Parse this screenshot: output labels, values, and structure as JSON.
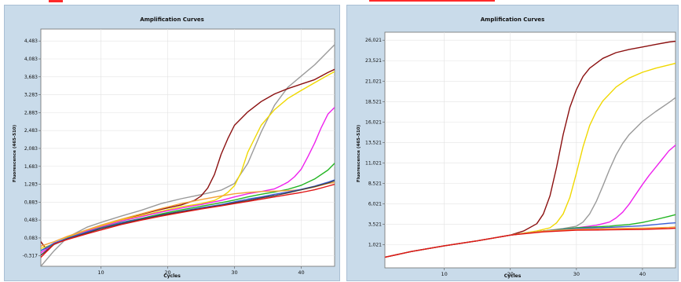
{
  "chart_data": [
    {
      "type": "line",
      "title": "Amplification Curves",
      "xlabel": "Cycles",
      "ylabel": "Fluorescence (465-510)",
      "xlim": [
        1,
        45
      ],
      "ylim": [
        -0.55,
        4.75
      ],
      "x_ticks": [
        "10",
        "20",
        "30",
        "40"
      ],
      "y_ticks": [
        "4,483",
        "4,083",
        "3,683",
        "3,283",
        "2,883",
        "2,483",
        "2,083",
        "1,683",
        "1,283",
        "0,883",
        "0,483",
        "0,083",
        "-0,317"
      ],
      "y_tick_values": [
        4.483,
        4.083,
        3.683,
        3.283,
        2.883,
        2.483,
        2.083,
        1.683,
        1.283,
        0.883,
        0.483,
        0.083,
        -0.317
      ],
      "grid": true,
      "series": [
        {
          "color": "#9a9a9a",
          "x": [
            1,
            3,
            5,
            8,
            10,
            13,
            16,
            19,
            22,
            25,
            28,
            30,
            32,
            34,
            36,
            38,
            40,
            42,
            44,
            45
          ],
          "y": [
            -0.55,
            -0.2,
            0.1,
            0.33,
            0.43,
            0.57,
            0.7,
            0.85,
            0.96,
            1.05,
            1.15,
            1.3,
            1.75,
            2.45,
            3.05,
            3.45,
            3.7,
            3.95,
            4.25,
            4.4
          ]
        },
        {
          "color": "#8b1010",
          "x": [
            1,
            2,
            3,
            5,
            8,
            10,
            13,
            16,
            19,
            22,
            24,
            25,
            26,
            27,
            28,
            29,
            30,
            32,
            34,
            36,
            38,
            40,
            42,
            44,
            45
          ],
          "y": [
            0.0,
            -0.2,
            -0.05,
            0.08,
            0.24,
            0.33,
            0.48,
            0.61,
            0.72,
            0.82,
            0.92,
            1.02,
            1.2,
            1.5,
            1.95,
            2.3,
            2.6,
            2.9,
            3.13,
            3.3,
            3.42,
            3.52,
            3.62,
            3.78,
            3.85
          ]
        },
        {
          "color": "#f0d800",
          "x": [
            1,
            3,
            5,
            8,
            10,
            13,
            16,
            19,
            22,
            25,
            27,
            28,
            29,
            30,
            31,
            32,
            34,
            36,
            38,
            40,
            42,
            44,
            45
          ],
          "y": [
            -0.15,
            -0.05,
            0.1,
            0.25,
            0.35,
            0.48,
            0.58,
            0.68,
            0.78,
            0.85,
            0.92,
            1.0,
            1.1,
            1.25,
            1.55,
            2.0,
            2.6,
            2.95,
            3.2,
            3.38,
            3.55,
            3.72,
            3.8
          ]
        },
        {
          "color": "#ee22ee",
          "x": [
            1,
            3,
            5,
            8,
            10,
            13,
            16,
            19,
            22,
            25,
            28,
            30,
            32,
            34,
            36,
            37,
            38,
            39,
            40,
            41,
            42,
            43,
            44,
            45
          ],
          "y": [
            -0.25,
            -0.05,
            0.08,
            0.24,
            0.33,
            0.46,
            0.56,
            0.66,
            0.75,
            0.83,
            0.92,
            1.0,
            1.07,
            1.12,
            1.18,
            1.25,
            1.33,
            1.45,
            1.62,
            1.9,
            2.2,
            2.55,
            2.85,
            3.0
          ]
        },
        {
          "color": "#22b522",
          "x": [
            1,
            3,
            5,
            8,
            10,
            13,
            16,
            19,
            22,
            25,
            28,
            30,
            32,
            34,
            36,
            38,
            40,
            42,
            44,
            45
          ],
          "y": [
            -0.2,
            -0.05,
            0.08,
            0.22,
            0.31,
            0.43,
            0.52,
            0.62,
            0.71,
            0.79,
            0.87,
            0.93,
            1.0,
            1.06,
            1.11,
            1.17,
            1.26,
            1.4,
            1.6,
            1.75
          ]
        },
        {
          "color": "#f4a23a",
          "x": [
            1,
            3,
            5,
            8,
            10,
            13,
            16,
            19,
            22,
            25,
            28,
            30,
            32,
            34,
            36,
            38,
            40,
            42,
            44,
            45
          ],
          "y": [
            -0.1,
            0.0,
            0.12,
            0.27,
            0.37,
            0.5,
            0.62,
            0.74,
            0.85,
            0.94,
            1.02,
            1.07,
            1.1,
            1.12,
            1.13,
            1.14,
            1.16,
            1.22,
            1.3,
            1.32
          ]
        },
        {
          "color": "#3b5fd9",
          "x": [
            1,
            3,
            5,
            8,
            10,
            13,
            16,
            19,
            22,
            25,
            28,
            30,
            32,
            34,
            36,
            38,
            40,
            42,
            44,
            45
          ],
          "y": [
            -0.2,
            -0.03,
            0.08,
            0.22,
            0.3,
            0.42,
            0.51,
            0.6,
            0.68,
            0.76,
            0.83,
            0.89,
            0.95,
            1.0,
            1.06,
            1.11,
            1.17,
            1.24,
            1.33,
            1.38
          ]
        },
        {
          "color": "#404040",
          "x": [
            1,
            3,
            5,
            8,
            10,
            13,
            16,
            19,
            22,
            25,
            28,
            30,
            32,
            34,
            36,
            38,
            40,
            42,
            44,
            45
          ],
          "y": [
            -0.3,
            -0.06,
            0.06,
            0.2,
            0.29,
            0.4,
            0.5,
            0.59,
            0.67,
            0.74,
            0.81,
            0.87,
            0.92,
            0.98,
            1.03,
            1.09,
            1.16,
            1.23,
            1.31,
            1.36
          ]
        },
        {
          "color": "#e01515",
          "x": [
            1,
            3,
            5,
            8,
            10,
            13,
            16,
            19,
            22,
            25,
            28,
            30,
            32,
            34,
            36,
            38,
            40,
            42,
            44,
            45
          ],
          "y": [
            -0.35,
            -0.05,
            0.05,
            0.18,
            0.26,
            0.38,
            0.48,
            0.57,
            0.65,
            0.73,
            0.8,
            0.85,
            0.9,
            0.95,
            1.0,
            1.05,
            1.1,
            1.16,
            1.24,
            1.28
          ]
        }
      ]
    },
    {
      "type": "line",
      "title": "Amplification Curves",
      "xlabel": "Cycles",
      "ylabel": "Fluorescence (465-510)",
      "xlim": [
        1,
        45
      ],
      "ylim": [
        -1.8,
        27.0
      ],
      "x_ticks": [
        "10",
        "20",
        "30",
        "40"
      ],
      "y_ticks": [
        "26,021",
        "23,521",
        "21,021",
        "18,521",
        "16,021",
        "13,521",
        "11,021",
        "8,521",
        "6,021",
        "3,521",
        "1,021"
      ],
      "y_tick_values": [
        26.021,
        23.521,
        21.021,
        18.521,
        16.021,
        13.521,
        11.021,
        8.521,
        6.021,
        3.521,
        1.021
      ],
      "grid": true,
      "series": [
        {
          "color": "#8b1010",
          "x": [
            1,
            5,
            10,
            15,
            20,
            22,
            24,
            25,
            26,
            27,
            28,
            29,
            30,
            31,
            32,
            34,
            36,
            38,
            40,
            42,
            44,
            45
          ],
          "y": [
            -0.5,
            0.2,
            0.9,
            1.5,
            2.2,
            2.7,
            3.6,
            4.8,
            7.0,
            10.5,
            14.5,
            17.8,
            20.0,
            21.6,
            22.6,
            23.8,
            24.5,
            24.9,
            25.2,
            25.5,
            25.8,
            25.9
          ]
        },
        {
          "color": "#f0d800",
          "x": [
            1,
            5,
            10,
            15,
            20,
            24,
            26,
            27,
            28,
            29,
            30,
            31,
            32,
            33,
            34,
            36,
            38,
            40,
            42,
            44,
            45
          ],
          "y": [
            -0.5,
            0.2,
            0.9,
            1.5,
            2.2,
            2.7,
            3.1,
            3.7,
            4.8,
            6.8,
            9.8,
            13.0,
            15.6,
            17.3,
            18.6,
            20.3,
            21.4,
            22.1,
            22.6,
            23.0,
            23.2
          ]
        },
        {
          "color": "#9a9a9a",
          "x": [
            1,
            5,
            10,
            15,
            20,
            25,
            28,
            30,
            31,
            32,
            33,
            34,
            35,
            36,
            37,
            38,
            40,
            42,
            44,
            45
          ],
          "y": [
            -0.5,
            0.2,
            0.9,
            1.5,
            2.2,
            2.7,
            3.0,
            3.3,
            3.8,
            4.8,
            6.3,
            8.2,
            10.2,
            12.0,
            13.4,
            14.5,
            16.1,
            17.3,
            18.4,
            19.0
          ]
        },
        {
          "color": "#ee22ee",
          "x": [
            1,
            5,
            10,
            15,
            20,
            25,
            30,
            33,
            35,
            36,
            37,
            38,
            39,
            40,
            41,
            42,
            43,
            44,
            45
          ],
          "y": [
            -0.5,
            0.2,
            0.9,
            1.5,
            2.2,
            2.7,
            3.1,
            3.4,
            3.8,
            4.3,
            5.0,
            6.0,
            7.2,
            8.4,
            9.5,
            10.5,
            11.5,
            12.5,
            13.2
          ]
        },
        {
          "color": "#22b522",
          "x": [
            1,
            5,
            10,
            15,
            20,
            25,
            30,
            35,
            38,
            40,
            42,
            44,
            45
          ],
          "y": [
            -0.5,
            0.2,
            0.9,
            1.5,
            2.2,
            2.7,
            3.1,
            3.3,
            3.5,
            3.75,
            4.1,
            4.5,
            4.7
          ]
        },
        {
          "color": "#3b5fd9",
          "x": [
            1,
            5,
            10,
            15,
            20,
            25,
            30,
            35,
            40,
            42,
            44,
            45
          ],
          "y": [
            -0.5,
            0.2,
            0.9,
            1.5,
            2.2,
            2.7,
            3.0,
            3.15,
            3.35,
            3.5,
            3.65,
            3.7
          ]
        },
        {
          "color": "#f4a23a",
          "x": [
            1,
            5,
            10,
            15,
            20,
            25,
            30,
            35,
            40,
            42,
            44,
            45
          ],
          "y": [
            -0.5,
            0.2,
            0.9,
            1.5,
            2.2,
            2.7,
            2.9,
            3.0,
            3.05,
            3.1,
            3.15,
            3.2
          ]
        },
        {
          "color": "#e01515",
          "x": [
            1,
            5,
            10,
            15,
            20,
            25,
            30,
            35,
            40,
            42,
            44,
            45
          ],
          "y": [
            -0.5,
            0.2,
            0.9,
            1.5,
            2.2,
            2.6,
            2.8,
            2.85,
            2.9,
            2.95,
            3.0,
            3.05
          ]
        }
      ]
    }
  ]
}
